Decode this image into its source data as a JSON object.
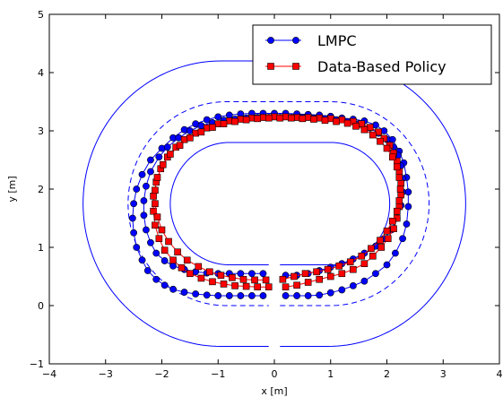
{
  "chart_data": {
    "type": "line",
    "xlabel": "x [m]",
    "ylabel": "y [m]",
    "xlim": [
      -4,
      4
    ],
    "ylim": [
      -1,
      5
    ],
    "xticks": [
      -4,
      -3,
      -2,
      -1,
      0,
      1,
      2,
      3,
      4
    ],
    "yticks": [
      -1,
      0,
      1,
      2,
      3,
      4,
      5
    ],
    "grid": false,
    "legend_position": "top-right",
    "colors": {
      "track": "#0000ff",
      "lmpc": "#0000ff",
      "data_based": "#ff0000",
      "marker_edge": "#000000"
    },
    "track": {
      "center_y": 1.75,
      "straight_half_length": 0.0,
      "boundaries": [
        {
          "name": "outer",
          "x_left": -3.4,
          "x_right": 3.4,
          "half_height": 2.45,
          "straight_x": [
            -0.1,
            0.1
          ],
          "style": "solid"
        },
        {
          "name": "center",
          "x_left": -2.6,
          "x_right": 2.75,
          "half_height": 1.75,
          "straight_x": [
            -0.1,
            0.1
          ],
          "style": "dashed"
        },
        {
          "name": "inner",
          "x_left": -1.85,
          "x_right": 2.05,
          "half_height": 1.05,
          "straight_x": [
            -0.1,
            0.1
          ],
          "style": "solid"
        }
      ]
    },
    "series": [
      {
        "name": "LMPC",
        "marker": "circle",
        "laps": [
          {
            "x": [
              0.2,
              0.4,
              0.6,
              0.8,
              1.0,
              1.2,
              1.4,
              1.6,
              1.8,
              2.0,
              2.15,
              2.28,
              2.35,
              2.38,
              2.38,
              2.35,
              2.3,
              2.22,
              2.1,
              1.95,
              1.8,
              1.6,
              1.4,
              1.2,
              1.0,
              0.8,
              0.6,
              0.4,
              0.2,
              0.0,
              -0.2,
              -0.4,
              -0.6,
              -0.8,
              -1.0,
              -1.2,
              -1.4,
              -1.6,
              -1.8,
              -2.0,
              -2.2,
              -2.35,
              -2.45,
              -2.5,
              -2.52,
              -2.5,
              -2.45,
              -2.35,
              -2.25,
              -2.1,
              -1.95,
              -1.8,
              -1.6,
              -1.4,
              -1.2,
              -1.0,
              -0.8,
              -0.6,
              -0.4,
              -0.2
            ],
            "y": [
              0.17,
              0.17,
              0.17,
              0.18,
              0.22,
              0.27,
              0.34,
              0.42,
              0.55,
              0.7,
              0.9,
              1.15,
              1.4,
              1.7,
              1.95,
              2.2,
              2.45,
              2.65,
              2.85,
              3.0,
              3.1,
              3.17,
              3.2,
              3.22,
              3.25,
              3.27,
              3.28,
              3.29,
              3.3,
              3.3,
              3.3,
              3.3,
              3.29,
              3.27,
              3.24,
              3.19,
              3.12,
              3.02,
              2.88,
              2.7,
              2.5,
              2.25,
              2.0,
              1.75,
              1.5,
              1.25,
              1.0,
              0.78,
              0.6,
              0.45,
              0.35,
              0.28,
              0.23,
              0.2,
              0.18,
              0.17,
              0.17,
              0.17,
              0.17,
              0.17
            ]
          },
          {
            "x": [
              0.2,
              0.4,
              0.6,
              0.8,
              1.0,
              1.2,
              1.4,
              1.6,
              1.8,
              1.95,
              2.08,
              2.18,
              2.25,
              2.28,
              2.28,
              2.25,
              2.2,
              2.12,
              2.0,
              1.85,
              1.7,
              1.5,
              1.3,
              1.1,
              0.9,
              0.7,
              0.5,
              0.3,
              0.1,
              -0.1,
              -0.3,
              -0.5,
              -0.7,
              -0.9,
              -1.1,
              -1.3,
              -1.5,
              -1.7,
              -1.9,
              -2.05,
              -2.2,
              -2.28,
              -2.32,
              -2.32,
              -2.28,
              -2.2,
              -2.1,
              -1.95,
              -1.8,
              -1.6,
              -1.4,
              -1.2,
              -1.0,
              -0.8,
              -0.6,
              -0.4,
              -0.2
            ],
            "y": [
              0.52,
              0.52,
              0.55,
              0.6,
              0.66,
              0.72,
              0.8,
              0.9,
              1.02,
              1.15,
              1.3,
              1.5,
              1.72,
              1.95,
              2.18,
              2.4,
              2.58,
              2.72,
              2.85,
              2.96,
              3.05,
              3.12,
              3.16,
              3.19,
              3.21,
              3.22,
              3.23,
              3.23,
              3.23,
              3.23,
              3.23,
              3.22,
              3.2,
              3.18,
              3.14,
              3.09,
              3.0,
              2.88,
              2.72,
              2.55,
              2.3,
              2.05,
              1.8,
              1.55,
              1.3,
              1.08,
              0.9,
              0.77,
              0.68,
              0.62,
              0.58,
              0.56,
              0.55,
              0.55,
              0.55,
              0.55,
              0.55
            ]
          }
        ]
      },
      {
        "name": "Data-Based Policy",
        "marker": "square",
        "laps": [
          {
            "x": [
              0.2,
              0.4,
              0.6,
              0.8,
              1.0,
              1.2,
              1.4,
              1.6,
              1.75,
              1.9,
              2.02,
              2.12,
              2.18,
              2.22,
              2.25,
              2.25,
              2.22,
              2.18,
              2.12,
              2.05,
              1.95,
              1.85,
              1.7,
              1.55,
              1.4,
              1.2,
              1.0,
              0.8,
              0.6,
              0.4,
              0.2,
              0.0,
              -0.2,
              -0.4,
              -0.6,
              -0.8,
              -1.0,
              -1.2,
              -1.4,
              -1.6,
              -1.75,
              -1.9,
              -2.02,
              -2.1,
              -2.15,
              -2.15,
              -2.12,
              -2.05,
              -1.95,
              -1.8,
              -1.65,
              -1.5,
              -1.3,
              -1.1,
              -0.9,
              -0.7,
              -0.5,
              -0.3,
              -0.1
            ],
            "y": [
              0.32,
              0.35,
              0.4,
              0.45,
              0.5,
              0.55,
              0.62,
              0.72,
              0.85,
              1.0,
              1.15,
              1.32,
              1.5,
              1.7,
              1.9,
              2.1,
              2.3,
              2.48,
              2.62,
              2.75,
              2.87,
              2.98,
              3.06,
              3.12,
              3.16,
              3.19,
              3.21,
              3.22,
              3.23,
              3.23,
              3.24,
              3.24,
              3.23,
              3.22,
              3.2,
              3.17,
              3.12,
              3.05,
              2.96,
              2.85,
              2.72,
              2.55,
              2.35,
              2.12,
              1.88,
              1.62,
              1.38,
              1.15,
              0.95,
              0.78,
              0.65,
              0.55,
              0.47,
              0.41,
              0.37,
              0.34,
              0.33,
              0.32,
              0.32
            ]
          },
          {
            "x": [
              0.15,
              0.35,
              0.55,
              0.75,
              0.95,
              1.15,
              1.35,
              1.55,
              1.72,
              1.88,
              2.0,
              2.1,
              2.18,
              2.22,
              2.24,
              2.22,
              2.18,
              2.1,
              2.0,
              1.88,
              1.75,
              1.6,
              1.45,
              1.3,
              1.1,
              0.9,
              0.7,
              0.5,
              0.3,
              0.1,
              -0.1,
              -0.3,
              -0.5,
              -0.7,
              -0.9,
              -1.1,
              -1.3,
              -1.5,
              -1.68,
              -1.85,
              -1.98,
              -2.08,
              -2.12,
              -2.12,
              -2.08,
              -2.0,
              -1.88,
              -1.72,
              -1.55,
              -1.35,
              -1.15,
              -0.95,
              -0.75,
              -0.55,
              -0.35,
              -0.15
            ],
            "y": [
              0.45,
              0.5,
              0.55,
              0.58,
              0.62,
              0.68,
              0.75,
              0.85,
              0.98,
              1.12,
              1.28,
              1.45,
              1.62,
              1.8,
              2.0,
              2.2,
              2.38,
              2.55,
              2.7,
              2.82,
              2.93,
              3.02,
              3.08,
              3.13,
              3.16,
              3.18,
              3.2,
              3.21,
              3.22,
              3.22,
              3.22,
              3.21,
              3.19,
              3.16,
              3.12,
              3.06,
              2.98,
              2.88,
              2.75,
              2.6,
              2.42,
              2.2,
              1.98,
              1.75,
              1.52,
              1.3,
              1.1,
              0.92,
              0.78,
              0.67,
              0.58,
              0.52,
              0.48,
              0.45,
              0.44,
              0.44
            ]
          }
        ]
      }
    ]
  }
}
